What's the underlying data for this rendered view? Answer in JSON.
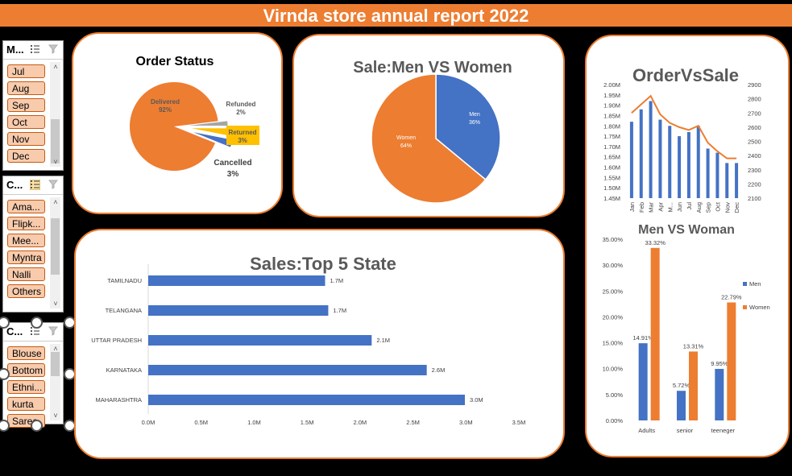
{
  "report": {
    "title": "Virnda store annual report 2022"
  },
  "slicers": [
    {
      "title": "M...",
      "items": [
        "Jul",
        "Aug",
        "Sep",
        "Oct",
        "Nov",
        "Dec"
      ]
    },
    {
      "title": "C...",
      "items": [
        "Ama...",
        "Flipk...",
        "Mee...",
        "Myntra",
        "Nalli",
        "Others"
      ]
    },
    {
      "title": "C...",
      "items": [
        "Blouse",
        "Bottom",
        "Ethni...",
        "kurta",
        "Saree"
      ]
    }
  ],
  "icons": {
    "multiselect": "multi-select-icon",
    "clear_filter": "clear-filter-icon",
    "scroll_up": "scroll-up-icon",
    "scroll_down": "scroll-down-icon"
  },
  "colors": {
    "accent": "#ED7D31",
    "blue": "#4472C4",
    "gold": "#FFC000",
    "grey": "#A5A5A5",
    "text_grey": "#595959"
  },
  "chart_data": [
    {
      "type": "pie",
      "title": "Order Status",
      "slices": [
        {
          "label": "Delivered",
          "pct_label": "92%",
          "value": 92,
          "color": "#ED7D31"
        },
        {
          "label": "Refunded",
          "pct_label": "2%",
          "value": 2,
          "color": "#A5A5A5"
        },
        {
          "label": "Returned",
          "pct_label": "3%",
          "value": 3,
          "color": "#FFC000"
        },
        {
          "label": "Cancelled",
          "pct_label": "3%",
          "value": 3,
          "color": "#4472C4"
        }
      ]
    },
    {
      "type": "pie",
      "title": "Sale:Men VS Women",
      "slices": [
        {
          "label": "Men",
          "pct_label": "36%",
          "value": 36,
          "color": "#4472C4"
        },
        {
          "label": "Women",
          "pct_label": "64%",
          "value": 64,
          "color": "#ED7D31"
        }
      ]
    },
    {
      "type": "bar",
      "orientation": "horizontal",
      "title": "Sales:Top 5 State",
      "categories": [
        "TAMILNADU",
        "TELANGANA",
        "UTTAR PRADESH",
        "KARNATAKA",
        "MAHARASHTRA"
      ],
      "values": [
        1.67,
        1.7,
        2.11,
        2.63,
        2.99
      ],
      "data_labels": [
        "1.7M",
        "1.7M",
        "2.1M",
        "2.6M",
        "3.0M"
      ],
      "xticks": [
        "0.0M",
        "0.5M",
        "1.0M",
        "1.5M",
        "2.0M",
        "2.5M",
        "3.0M",
        "3.5M"
      ],
      "xlim": [
        0,
        3.5
      ]
    },
    {
      "type": "bar",
      "subtype": "combo-bar-line",
      "title": "OrderVsSale",
      "categories": [
        "Jan",
        "Feb",
        "Mar",
        "Apr",
        "M...",
        "Jun",
        "Jul",
        "Aug",
        "Sep",
        "Oct",
        "Nov",
        "Dec"
      ],
      "series": [
        {
          "type": "bar",
          "axis": "left",
          "values": [
            1.82,
            1.88,
            1.92,
            1.83,
            1.8,
            1.75,
            1.77,
            1.8,
            1.69,
            1.67,
            1.62,
            1.62
          ]
        },
        {
          "type": "line",
          "axis": "right",
          "values": [
            2700,
            2760,
            2820,
            2690,
            2630,
            2600,
            2580,
            2610,
            2490,
            2430,
            2380,
            2380
          ]
        }
      ],
      "yticks_left": [
        "2.00M",
        "1.95M",
        "1.90M",
        "1.85M",
        "1.80M",
        "1.75M",
        "1.70M",
        "1.65M",
        "1.60M",
        "1.55M",
        "1.50M",
        "1.45M"
      ],
      "ylim_left": [
        1.45,
        2.0
      ],
      "yticks_right": [
        "2900",
        "2800",
        "2700",
        "2600",
        "2500",
        "2400",
        "2300",
        "2200",
        "2100"
      ],
      "ylim_right": [
        2100,
        2900
      ]
    },
    {
      "type": "bar",
      "title": "Men VS Woman",
      "categories": [
        "Adults",
        "senior",
        "teeneger"
      ],
      "series": [
        {
          "name": "Men",
          "values": [
            14.91,
            5.72,
            9.95
          ],
          "labels": [
            "14.91%",
            "5.72%",
            "9.95%"
          ],
          "color": "#4472C4"
        },
        {
          "name": "Women",
          "values": [
            33.32,
            13.31,
            22.79
          ],
          "labels": [
            "33.32%",
            "13.31%",
            "22.79%"
          ],
          "color": "#ED7D31"
        }
      ],
      "yticks": [
        "35.00%",
        "30.00%",
        "25.00%",
        "20.00%",
        "15.00%",
        "10.00%",
        "5.00%",
        "0.00%"
      ],
      "ylim": [
        0,
        35
      ],
      "legend": "right"
    }
  ]
}
